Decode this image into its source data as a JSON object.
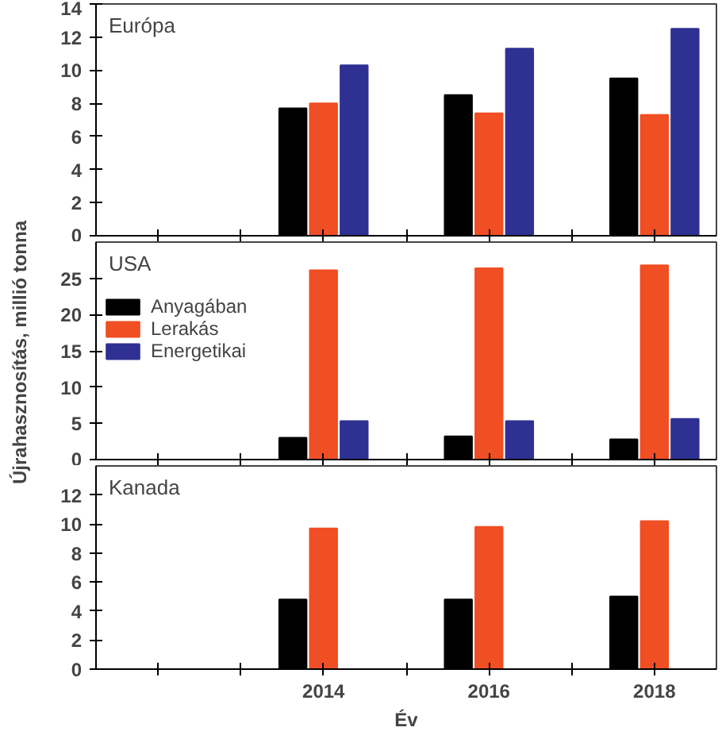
{
  "chart_data": [
    {
      "type": "bar",
      "title": "Európa",
      "x": [
        2014,
        2016,
        2018
      ],
      "xlim": [
        2011.25,
        2018.75
      ],
      "xticks": [
        {
          "value": 2012,
          "label": null
        },
        {
          "value": 2013,
          "label": null
        },
        {
          "value": 2014,
          "label": null
        },
        {
          "value": 2015,
          "label": null
        },
        {
          "value": 2016,
          "label": null
        },
        {
          "value": 2017,
          "label": null
        },
        {
          "value": 2018,
          "label": null
        }
      ],
      "ylim": [
        0,
        14
      ],
      "yticks": [
        0,
        2,
        4,
        6,
        8,
        10,
        12,
        14
      ],
      "tick_labels": "y",
      "series": [
        {
          "color": "#000000",
          "values": [
            7.7,
            8.5,
            9.5
          ]
        },
        {
          "color": "#f04e23",
          "values": [
            8.0,
            7.4,
            7.3
          ]
        },
        {
          "color": "#2e3192",
          "values": [
            10.3,
            11.3,
            12.5
          ]
        }
      ]
    },
    {
      "type": "bar",
      "title": "USA",
      "ylabel": "Újrahasznosítás, millió tonna",
      "x": [
        2014,
        2016,
        2018
      ],
      "xlim": [
        2011.25,
        2018.75
      ],
      "xticks": [
        {
          "value": 2012,
          "label": null
        },
        {
          "value": 2013,
          "label": null
        },
        {
          "value": 2014,
          "label": null
        },
        {
          "value": 2015,
          "label": null
        },
        {
          "value": 2016,
          "label": null
        },
        {
          "value": 2017,
          "label": null
        },
        {
          "value": 2018,
          "label": null
        }
      ],
      "ylim": [
        0,
        30
      ],
      "yticks": [
        0,
        5,
        10,
        15,
        20,
        25
      ],
      "tick_labels": "y",
      "legend": "top left",
      "series": [
        {
          "name": "Anyagában",
          "color": "#000000",
          "values": [
            3.0,
            3.2,
            2.8
          ]
        },
        {
          "name": "Lerakás",
          "color": "#f04e23",
          "values": [
            26.1,
            26.4,
            26.8
          ]
        },
        {
          "name": "Energetikai",
          "color": "#2e3192",
          "values": [
            5.3,
            5.3,
            5.6
          ]
        }
      ]
    },
    {
      "type": "bar",
      "title": "Kanada",
      "xlabel": "Év",
      "x": [
        2014,
        2016,
        2018
      ],
      "xlim": [
        2011.25,
        2018.75
      ],
      "xticks": [
        {
          "value": 2012,
          "label": null
        },
        {
          "value": 2013,
          "label": null
        },
        2014,
        {
          "value": 2015,
          "label": null
        },
        2016,
        {
          "value": 2017,
          "label": null
        },
        2018
      ],
      "ylim": [
        0,
        14
      ],
      "yticks": [
        0,
        2,
        4,
        6,
        8,
        10,
        12
      ],
      "series": [
        {
          "color": "#000000",
          "values": [
            4.8,
            4.8,
            5.0
          ]
        },
        {
          "color": "#f04e23",
          "values": [
            9.7,
            9.8,
            10.2
          ]
        }
      ]
    }
  ]
}
